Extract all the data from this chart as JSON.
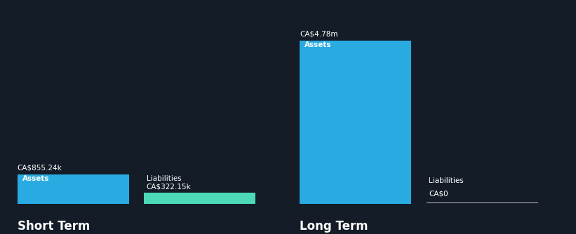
{
  "background_color": "#131c27",
  "text_color": "#ffffff",
  "groups": [
    "Short Term",
    "Long Term"
  ],
  "short_term": {
    "assets_value": 855240,
    "liabilities_value": 322150,
    "assets_label": "CA$855.24k",
    "liabilities_label": "CA$322.15k"
  },
  "long_term": {
    "assets_value": 4780000,
    "liabilities_value": 0,
    "assets_label": "CA$4.78m",
    "liabilities_label": "CA$0"
  },
  "assets_color": "#29abe2",
  "liabilities_color": "#4dd9b8",
  "group_label_fontsize": 12,
  "value_label_fontsize": 7.5,
  "bar_label_fontsize": 7.5,
  "baseline_color": "#4a5568"
}
